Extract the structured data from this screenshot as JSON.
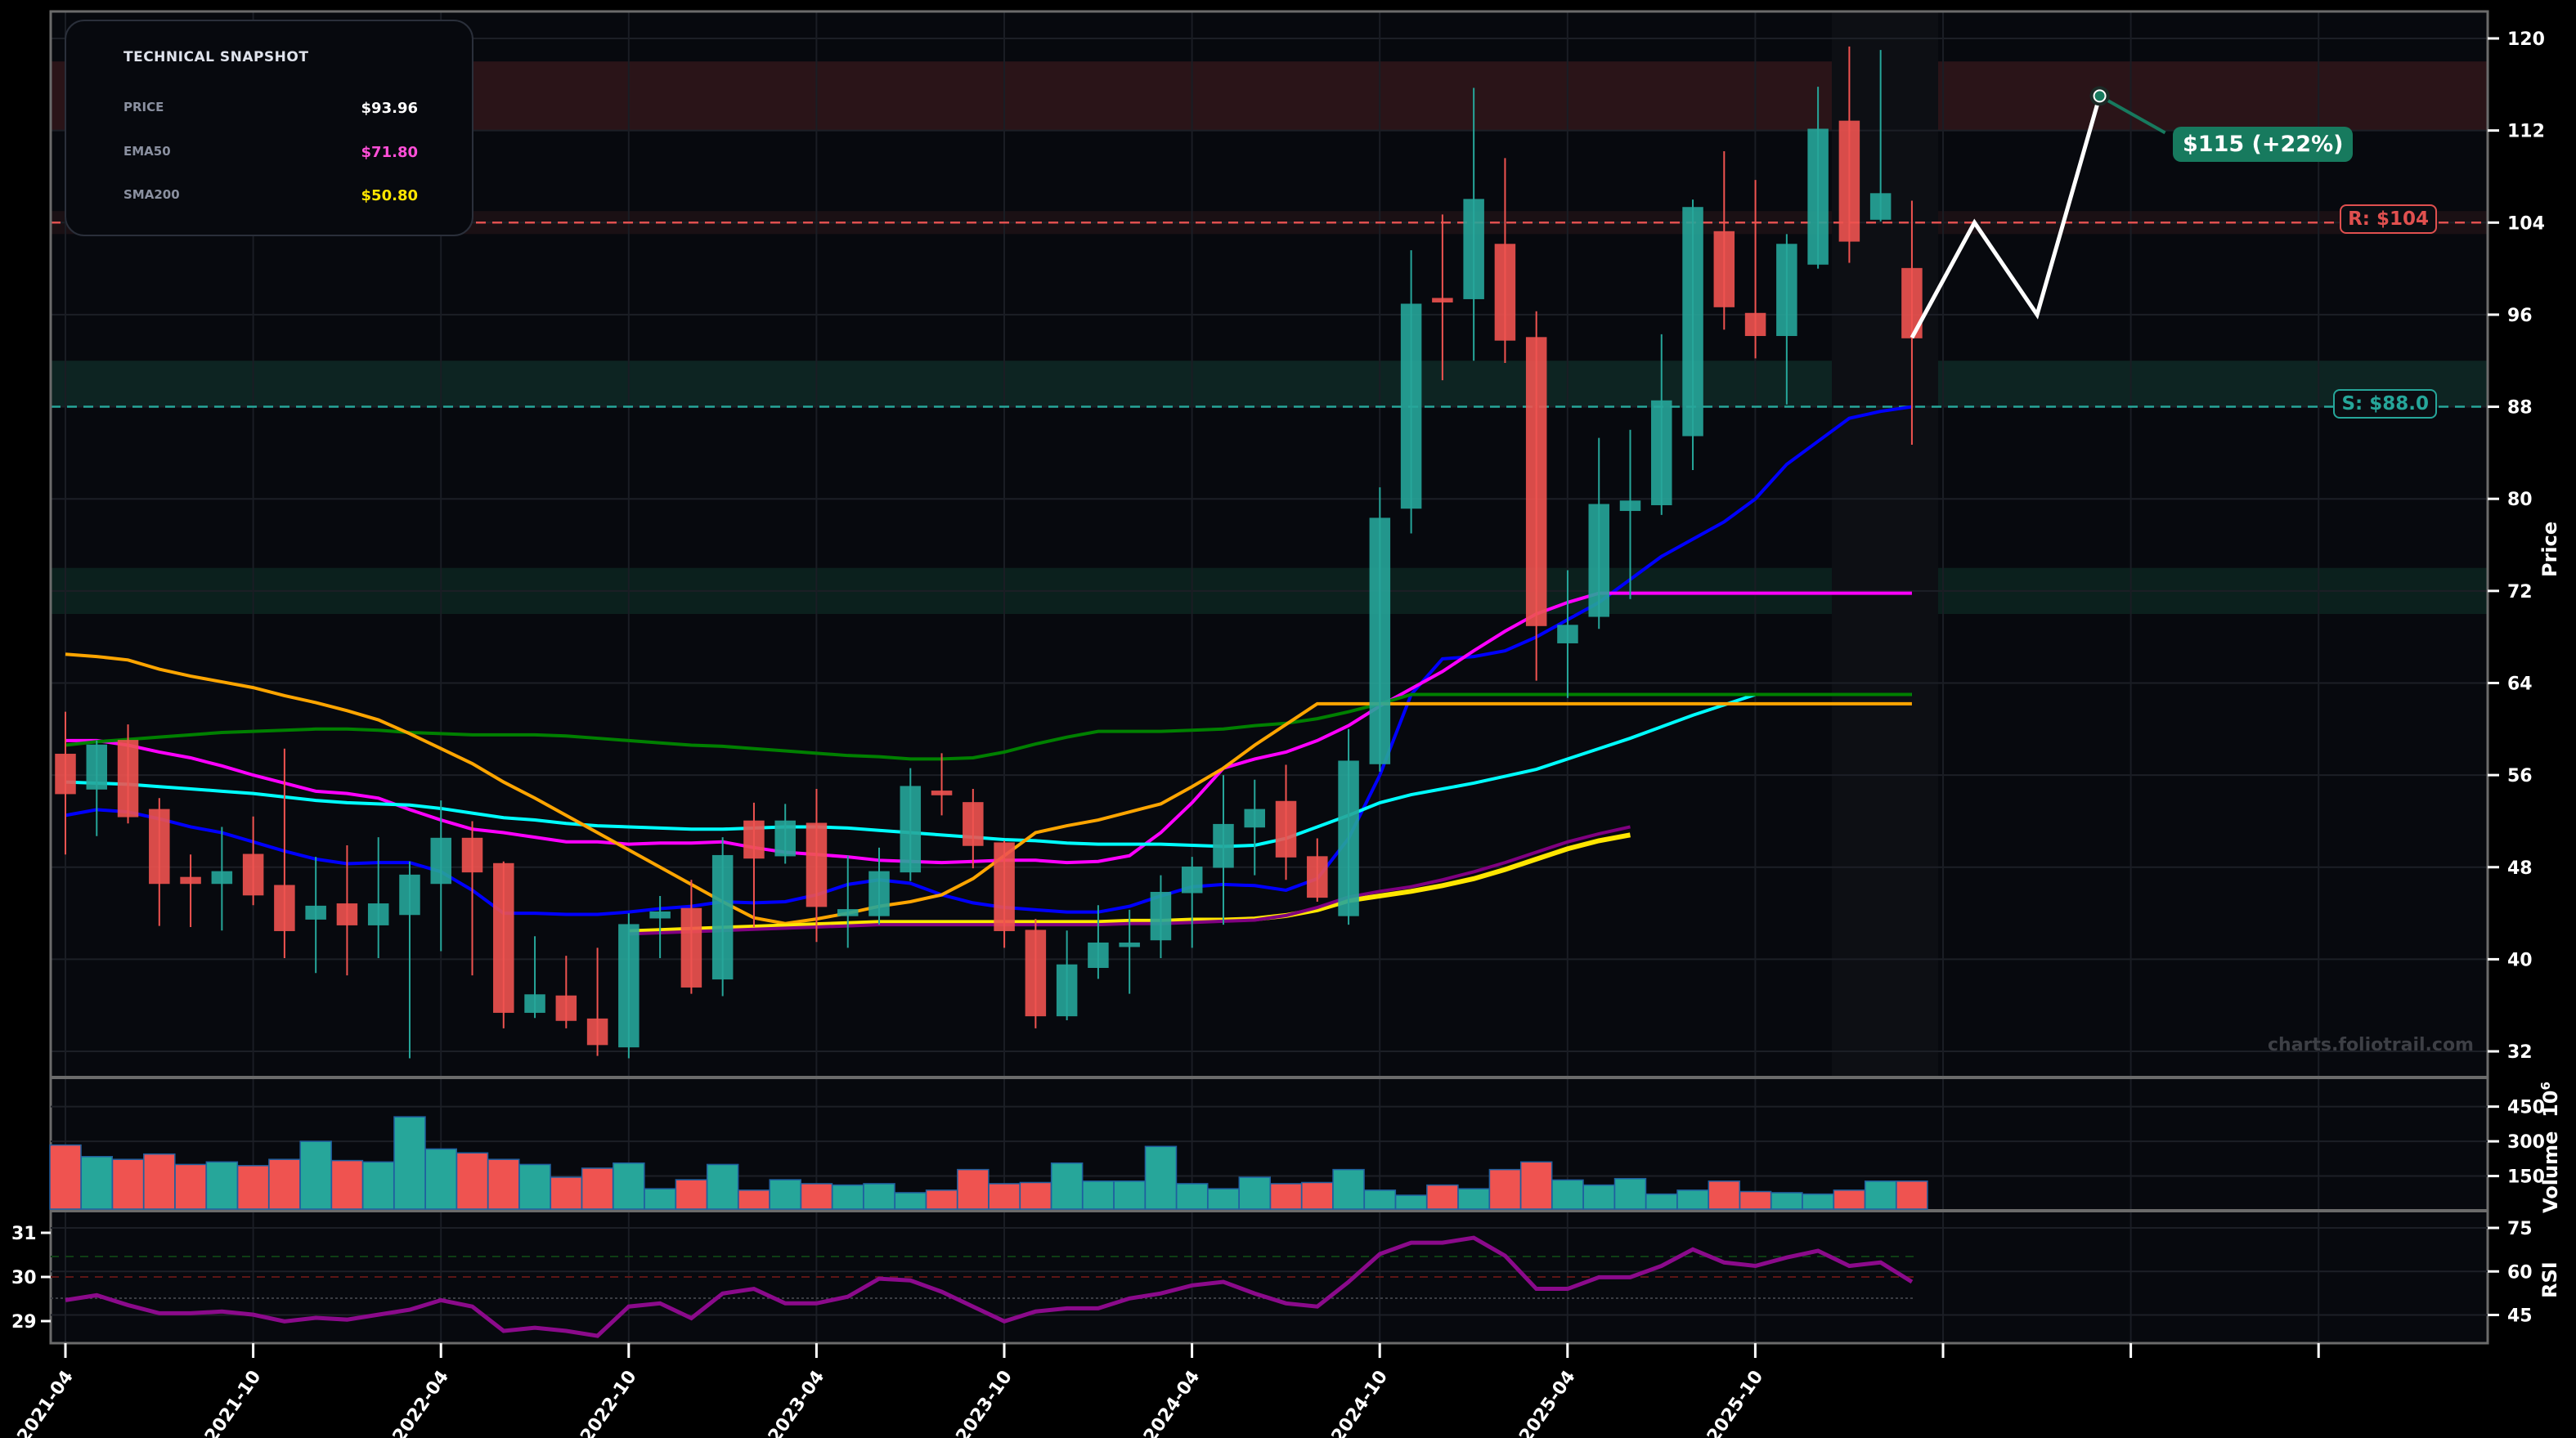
{
  "snapshot": {
    "title": "TECHNICAL SNAPSHOT",
    "rows": [
      {
        "label": "PRICE",
        "value": "$93.96",
        "color": "#ffffff"
      },
      {
        "label": "EMA50",
        "value": "$71.80",
        "color": "#ff4fd8"
      },
      {
        "label": "SMA200",
        "value": "$50.80",
        "color": "#ffe600"
      }
    ]
  },
  "levels": {
    "resistance_label": "R: $104",
    "support_label": "S: $88.0",
    "resistance": 104,
    "support": 88,
    "resistance_color": "#e0504f",
    "support_color": "#26a69a"
  },
  "forecast": {
    "label": "$115 (+22%)",
    "target": 115
  },
  "watermark": "charts.foliotrail.com",
  "axis": {
    "price_title": "Price",
    "volume_title": "Volume",
    "volume_exp": "10",
    "volume_exp_sup": "6",
    "rsi_title": "RSI"
  },
  "colors": {
    "up": "#26a69a",
    "down": "#ef5350",
    "background": "#07090e"
  },
  "chart_data": [
    {
      "type": "candlestick",
      "title": "",
      "ylabel": "Price",
      "ylim": [
        30,
        122
      ],
      "yticks": [
        32,
        40,
        48,
        56,
        64,
        72,
        80,
        88,
        96,
        104,
        112,
        120
      ],
      "xticks": [
        "2021-04",
        "2021-10",
        "2022-04",
        "2022-10",
        "2023-04",
        "2023-10",
        "2024-04",
        "2024-10",
        "2025-04",
        "2025-10"
      ],
      "start_month": "2021-04",
      "ohlc": [
        [
          57.8,
          61.5,
          49.1,
          54.4
        ],
        [
          54.8,
          59.0,
          50.7,
          58.6
        ],
        [
          59.0,
          60.4,
          51.8,
          52.4
        ],
        [
          53.0,
          54.0,
          42.9,
          46.6
        ],
        [
          47.1,
          49.1,
          42.8,
          46.6
        ],
        [
          46.6,
          51.5,
          42.5,
          47.6
        ],
        [
          49.1,
          52.4,
          44.7,
          45.6
        ],
        [
          46.4,
          58.3,
          40.1,
          42.5
        ],
        [
          43.5,
          48.9,
          38.8,
          44.6
        ],
        [
          44.8,
          49.9,
          38.6,
          43.0
        ],
        [
          43.0,
          50.6,
          40.1,
          44.8
        ],
        [
          43.9,
          48.5,
          31.4,
          47.3
        ],
        [
          46.6,
          53.8,
          40.7,
          50.5
        ],
        [
          50.5,
          52.0,
          38.6,
          47.6
        ],
        [
          48.3,
          48.5,
          34.0,
          35.4
        ],
        [
          35.4,
          42.0,
          34.9,
          36.9
        ],
        [
          36.8,
          40.3,
          34.0,
          34.7
        ],
        [
          34.8,
          41.0,
          31.6,
          32.6
        ],
        [
          32.4,
          44.0,
          31.4,
          43.0
        ],
        [
          43.6,
          45.5,
          40.1,
          44.1
        ],
        [
          44.4,
          46.9,
          37.0,
          37.6
        ],
        [
          38.3,
          50.6,
          36.8,
          49.0
        ],
        [
          52.0,
          53.6,
          42.8,
          48.8
        ],
        [
          49.0,
          53.5,
          48.3,
          52.0
        ],
        [
          51.8,
          54.8,
          41.5,
          44.6
        ],
        [
          43.8,
          49.0,
          41.0,
          44.3
        ],
        [
          43.8,
          49.7,
          43.0,
          47.6
        ],
        [
          47.6,
          56.6,
          46.8,
          55.0
        ],
        [
          54.6,
          57.9,
          52.5,
          54.3
        ],
        [
          53.6,
          54.8,
          47.9,
          49.9
        ],
        [
          50.1,
          50.3,
          41.0,
          42.5
        ],
        [
          42.5,
          43.5,
          34.0,
          35.1
        ],
        [
          35.1,
          42.5,
          34.7,
          39.5
        ],
        [
          39.3,
          44.7,
          38.3,
          41.4
        ],
        [
          41.2,
          44.3,
          37.0,
          41.4
        ],
        [
          41.7,
          47.3,
          40.1,
          45.8
        ],
        [
          45.8,
          48.9,
          41.0,
          48.0
        ],
        [
          48.0,
          56.0,
          43.0,
          51.7
        ],
        [
          51.5,
          55.6,
          47.3,
          53.0
        ],
        [
          53.7,
          56.9,
          46.9,
          48.9
        ],
        [
          48.9,
          50.5,
          45.0,
          45.4
        ],
        [
          43.8,
          60.0,
          43.0,
          57.2
        ],
        [
          57.0,
          81.0,
          56.3,
          78.3
        ],
        [
          79.2,
          101.6,
          77.0,
          96.9
        ],
        [
          97.4,
          104.7,
          90.3,
          97.2
        ],
        [
          97.4,
          115.7,
          92.0,
          106.0
        ],
        [
          102.1,
          109.6,
          91.8,
          93.8
        ],
        [
          94.0,
          96.3,
          64.2,
          69.0
        ],
        [
          67.5,
          73.8,
          62.7,
          69.0
        ],
        [
          69.8,
          85.3,
          68.7,
          79.5
        ],
        [
          79.0,
          86.0,
          71.3,
          79.8
        ],
        [
          79.5,
          94.3,
          78.6,
          88.5
        ],
        [
          85.5,
          106.0,
          82.5,
          105.3
        ],
        [
          103.2,
          110.2,
          94.7,
          96.7
        ],
        [
          96.1,
          107.7,
          92.2,
          94.2
        ],
        [
          94.2,
          103.0,
          88.2,
          102.1
        ],
        [
          100.4,
          115.8,
          100.0,
          112.1
        ],
        [
          112.8,
          119.3,
          100.5,
          102.4
        ],
        [
          104.3,
          119.0,
          104.1,
          106.5
        ],
        [
          100.0,
          105.9,
          84.7,
          94.0
        ]
      ],
      "series": [
        {
          "name": "EMA20",
          "color": "#0000ff",
          "values": [
            52.5,
            53,
            52.8,
            52.2,
            51.5,
            51,
            50.2,
            49.4,
            48.7,
            48.3,
            48.4,
            48.4,
            47.6,
            46,
            44,
            44,
            43.9,
            43.9,
            44.1,
            44.4,
            44.6,
            45,
            44.9,
            45,
            45.6,
            46.5,
            46.9,
            46.6,
            45.6,
            44.9,
            44.5,
            44.3,
            44.1,
            44.1,
            44.6,
            45.5,
            46.3,
            46.5,
            46.4,
            46,
            47,
            50.5,
            56,
            63,
            66.1,
            66.3,
            66.8,
            68,
            69.5,
            71,
            73,
            75,
            76.5,
            78,
            80,
            83,
            85,
            87,
            87.6,
            88
          ]
        },
        {
          "name": "EMA50",
          "color": "#ff00ff",
          "values": [
            59,
            59,
            58.6,
            58,
            57.5,
            56.8,
            56,
            55.3,
            54.6,
            54.4,
            54,
            53,
            52.1,
            51.3,
            51,
            50.6,
            50.2,
            50.2,
            50,
            50.1,
            50.1,
            50.2,
            49.7,
            49.3,
            49.1,
            48.9,
            48.6,
            48.5,
            48.4,
            48.5,
            48.6,
            48.6,
            48.4,
            48.5,
            49,
            51,
            53.6,
            56.6,
            57.4,
            58,
            59,
            60.3,
            62,
            63.5,
            65,
            66.8,
            68.5,
            70,
            71,
            71.8,
            71.8,
            71.8,
            71.8,
            71.8,
            71.8,
            71.8,
            71.8,
            71.8,
            71.8,
            71.8
          ]
        },
        {
          "name": "SMA50",
          "color": "#00ffff",
          "values": [
            55.4,
            55.3,
            55.2,
            55,
            54.8,
            54.6,
            54.4,
            54.1,
            53.8,
            53.6,
            53.5,
            53.4,
            53.1,
            52.7,
            52.3,
            52.1,
            51.8,
            51.6,
            51.5,
            51.4,
            51.3,
            51.3,
            51.4,
            51.5,
            51.5,
            51.4,
            51.2,
            51.0,
            50.8,
            50.6,
            50.4,
            50.3,
            50.1,
            50.0,
            50.0,
            50.0,
            49.9,
            49.8,
            49.9,
            50.5,
            51.5,
            52.5,
            53.6,
            54.3,
            54.8,
            55.3,
            55.9,
            56.5,
            57.4,
            58.3,
            59.2,
            60.2,
            61.2,
            62.1,
            63.0,
            63.0,
            63.0,
            63.0,
            63.0,
            63.0
          ]
        },
        {
          "name": "SMA100",
          "color": "#008000",
          "values": [
            58.6,
            58.9,
            59.1,
            59.3,
            59.5,
            59.7,
            59.8,
            59.9,
            60.0,
            60.0,
            59.9,
            59.7,
            59.6,
            59.5,
            59.5,
            59.5,
            59.4,
            59.2,
            59.0,
            58.8,
            58.6,
            58.5,
            58.3,
            58.1,
            57.9,
            57.7,
            57.6,
            57.4,
            57.4,
            57.5,
            58.0,
            58.7,
            59.3,
            59.8,
            59.8,
            59.8,
            59.9,
            60.0,
            60.3,
            60.5,
            60.9,
            61.5,
            62.2,
            63.0,
            63.0,
            63.0,
            63.0,
            63.0,
            63.0,
            63.0,
            63.0,
            63.0,
            63.0,
            63.0,
            63.0,
            63.0,
            63.0,
            63.0,
            63.0,
            63.0
          ]
        },
        {
          "name": "SMA20",
          "color": "#ffa500",
          "values": [
            66.5,
            66.3,
            66,
            65.2,
            64.6,
            64.1,
            63.6,
            62.9,
            62.3,
            61.6,
            60.8,
            59.6,
            58.3,
            57,
            55.4,
            54,
            52.5,
            51,
            49.5,
            48,
            46.5,
            45,
            43.6,
            43.1,
            43.5,
            44,
            44.6,
            45,
            45.6,
            47,
            49,
            51,
            51.6,
            52.1,
            52.8,
            53.5,
            55,
            56.6,
            58.6,
            60.4,
            62.2,
            62.2,
            62.2,
            62.2,
            62.2,
            62.2,
            62.2,
            62.2,
            62.2,
            62.2,
            62.2,
            62.2,
            62.2,
            62.2,
            62.2,
            62.2,
            62.2,
            62.2,
            62.2,
            62.2
          ]
        },
        {
          "name": "SMA200",
          "color": "#ffe600",
          "values": [
            42.4,
            42.5,
            42.6,
            42.7,
            42.8,
            42.9,
            43.0,
            43.1,
            43.2,
            43.2,
            43.2,
            43.2,
            43.2,
            43.2,
            43.2,
            43.2,
            43.3,
            43.3,
            43.4,
            43.4,
            43.5,
            43.8,
            44.3,
            45.1,
            45.5,
            45.9,
            46.4,
            47.0,
            47.8,
            48.7,
            49.6,
            50.3,
            50.8
          ]
        },
        {
          "name": "EMA200",
          "color": "#800080",
          "values": [
            42.2,
            42.3,
            42.4,
            42.5,
            42.6,
            42.7,
            42.8,
            42.9,
            43.0,
            43.0,
            43.0,
            43.0,
            43.0,
            43.0,
            43.0,
            43.0,
            43.1,
            43.1,
            43.2,
            43.3,
            43.4,
            43.8,
            44.5,
            45.4,
            45.9,
            46.3,
            46.9,
            47.6,
            48.4,
            49.3,
            50.2,
            50.9,
            51.5
          ]
        }
      ],
      "levels": {
        "resistance": 104,
        "support": 88
      },
      "zones": [
        {
          "from": 112,
          "to": 118,
          "color": "#2a1418"
        },
        {
          "from": 88,
          "to": 92,
          "color": "#0d2422"
        },
        {
          "from": 70,
          "to": 74,
          "color": "#0b201d"
        }
      ],
      "forecast_path": [
        [
          59,
          94
        ],
        [
          61,
          104
        ],
        [
          63,
          96
        ],
        [
          65,
          115
        ]
      ],
      "annotations": [
        "R: $104",
        "S: $88.0",
        "$115 (+22%)"
      ]
    },
    {
      "type": "bar",
      "ylabel": "Volume 10^6",
      "yticks": [
        150,
        300,
        450
      ],
      "values": [
        284,
        234,
        222,
        245,
        200,
        211,
        195,
        222,
        300,
        217,
        211,
        406,
        267,
        250,
        222,
        200,
        145,
        184,
        206,
        95,
        134,
        200,
        89,
        134,
        117,
        111,
        117,
        78,
        89,
        178,
        117,
        122,
        206,
        128,
        128,
        278,
        117,
        95,
        145,
        117,
        122,
        178,
        89,
        67,
        111,
        95,
        178,
        211,
        133,
        111,
        139,
        72,
        89,
        128,
        83,
        78,
        72,
        89,
        128,
        128
      ]
    },
    {
      "type": "line",
      "ylabel": "RSI",
      "yticks": [
        45,
        60,
        75
      ],
      "left_ticks": [
        29,
        30,
        31
      ],
      "overbought": 70,
      "oversold": 30,
      "values": [
        50.1,
        51.8,
        48.4,
        45.6,
        45.6,
        46.2,
        45.1,
        42.8,
        44.0,
        43.4,
        45.1,
        46.8,
        50.1,
        47.9,
        39.5,
        40.6,
        39.5,
        37.8,
        47.9,
        49.0,
        43.9,
        52.4,
        54.0,
        49.0,
        49.0,
        51.3,
        57.5,
        56.9,
        53.0,
        47.9,
        42.8,
        46.2,
        47.3,
        47.3,
        50.7,
        52.4,
        55.2,
        56.4,
        52.4,
        49.0,
        47.9,
        56.4,
        66.0,
        69.9,
        69.9,
        71.6,
        65.4,
        54.0,
        54.0,
        58.0,
        58.0,
        61.9,
        67.6,
        63.1,
        61.9,
        64.8,
        67.1,
        61.9,
        63.1,
        56.4
      ]
    }
  ]
}
